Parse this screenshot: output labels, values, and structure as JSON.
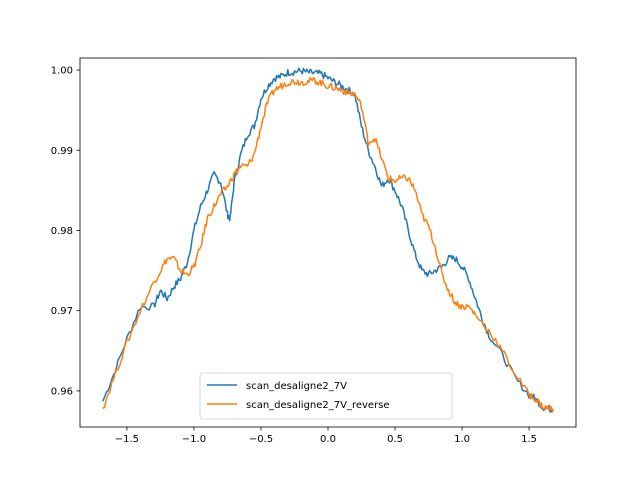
{
  "chart_data": {
    "type": "line",
    "title": "",
    "xlabel": "",
    "ylabel": "",
    "xlim": [
      -1.85,
      1.85
    ],
    "ylim": [
      0.9555,
      1.0015
    ],
    "grid": false,
    "legend_position": "lower-center",
    "x_ticks": [
      -1.5,
      -1.0,
      -0.5,
      0.0,
      0.5,
      1.0,
      1.5
    ],
    "x_tick_labels": [
      "−1.5",
      "−1.0",
      "−0.5",
      "0.0",
      "0.5",
      "1.0",
      "1.5"
    ],
    "y_ticks": [
      0.96,
      0.97,
      0.98,
      0.99,
      1.0
    ],
    "y_tick_labels": [
      "0.96",
      "0.97",
      "0.98",
      "0.99",
      "1.00"
    ],
    "series": [
      {
        "name": "scan_desaligne2_7V",
        "color": "#1f77b4",
        "x": [
          -1.68,
          -1.6,
          -1.5,
          -1.4,
          -1.3,
          -1.25,
          -1.2,
          -1.15,
          -1.1,
          -1.05,
          -1.0,
          -0.95,
          -0.9,
          -0.85,
          -0.8,
          -0.75,
          -0.73,
          -0.7,
          -0.65,
          -0.6,
          -0.55,
          -0.5,
          -0.45,
          -0.4,
          -0.35,
          -0.3,
          -0.25,
          -0.2,
          -0.15,
          -0.1,
          -0.05,
          0.0,
          0.05,
          0.1,
          0.15,
          0.2,
          0.25,
          0.3,
          0.35,
          0.4,
          0.45,
          0.5,
          0.55,
          0.6,
          0.65,
          0.7,
          0.75,
          0.8,
          0.85,
          0.9,
          0.95,
          1.0,
          1.05,
          1.1,
          1.15,
          1.2,
          1.3,
          1.4,
          1.5,
          1.55,
          1.6,
          1.65,
          1.68
        ],
        "y": [
          0.9587,
          0.962,
          0.9665,
          0.9705,
          0.9705,
          0.9725,
          0.9715,
          0.973,
          0.974,
          0.976,
          0.98,
          0.983,
          0.985,
          0.987,
          0.986,
          0.982,
          0.9815,
          0.986,
          0.9895,
          0.992,
          0.993,
          0.9965,
          0.998,
          0.999,
          0.9992,
          0.9997,
          0.9998,
          0.9999,
          0.9997,
          0.9996,
          0.9995,
          0.999,
          0.9985,
          0.998,
          0.9975,
          0.997,
          0.993,
          0.99,
          0.988,
          0.9855,
          0.9865,
          0.985,
          0.983,
          0.98,
          0.977,
          0.975,
          0.9745,
          0.975,
          0.9755,
          0.9765,
          0.9765,
          0.9755,
          0.974,
          0.9715,
          0.969,
          0.967,
          0.9645,
          0.9615,
          0.9595,
          0.959,
          0.958,
          0.9578,
          0.9577
        ]
      },
      {
        "name": "scan_desaligne2_7V_reverse",
        "color": "#ff7f0e",
        "x": [
          -1.68,
          -1.6,
          -1.5,
          -1.4,
          -1.3,
          -1.25,
          -1.2,
          -1.15,
          -1.1,
          -1.05,
          -1.0,
          -0.95,
          -0.9,
          -0.85,
          -0.8,
          -0.75,
          -0.7,
          -0.65,
          -0.6,
          -0.55,
          -0.5,
          -0.45,
          -0.4,
          -0.35,
          -0.3,
          -0.25,
          -0.2,
          -0.15,
          -0.1,
          -0.05,
          0.0,
          0.05,
          0.1,
          0.15,
          0.2,
          0.25,
          0.3,
          0.35,
          0.4,
          0.45,
          0.5,
          0.55,
          0.6,
          0.65,
          0.7,
          0.75,
          0.8,
          0.85,
          0.9,
          0.95,
          1.0,
          1.05,
          1.1,
          1.2,
          1.3,
          1.4,
          1.5,
          1.55,
          1.6,
          1.65,
          1.68
        ],
        "y": [
          0.9578,
          0.9615,
          0.966,
          0.97,
          0.9735,
          0.975,
          0.9765,
          0.9765,
          0.975,
          0.9745,
          0.9755,
          0.978,
          0.9815,
          0.983,
          0.9845,
          0.9855,
          0.987,
          0.988,
          0.988,
          0.9895,
          0.993,
          0.996,
          0.9975,
          0.998,
          0.9985,
          0.9986,
          0.9985,
          0.9986,
          0.9987,
          0.9984,
          0.998,
          0.9978,
          0.9975,
          0.9972,
          0.997,
          0.9955,
          0.991,
          0.9915,
          0.989,
          0.9865,
          0.9862,
          0.9865,
          0.9865,
          0.985,
          0.982,
          0.9805,
          0.978,
          0.9745,
          0.9725,
          0.971,
          0.9705,
          0.9705,
          0.9695,
          0.9675,
          0.965,
          0.962,
          0.9595,
          0.959,
          0.958,
          0.9578,
          0.9577
        ]
      }
    ]
  }
}
